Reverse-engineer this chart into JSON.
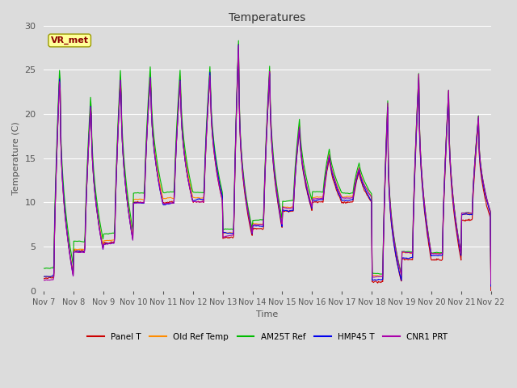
{
  "title": "Temperatures",
  "xlabel": "Time",
  "ylabel": "Temperature (C)",
  "ylim": [
    0,
    30
  ],
  "annotation_text": "VR_met",
  "annotation_color": "#8B0000",
  "annotation_bg": "#FFFF99",
  "annotation_edge": "#999900",
  "bg_color": "#DCDCDC",
  "series_colors": {
    "Panel T": "#CC0000",
    "Old Ref Temp": "#FF8C00",
    "AM25T Ref": "#00BB00",
    "HMP45 T": "#0000EE",
    "CNR1 PRT": "#AA00AA"
  },
  "xtick_labels": [
    "Nov 7",
    "Nov 8",
    "Nov 9",
    "Nov 10",
    "Nov 11",
    "Nov 12",
    "Nov 13",
    "Nov 14",
    "Nov 15",
    "Nov 16",
    "Nov 17",
    "Nov 18",
    "Nov 19",
    "Nov 20",
    "Nov 21",
    "Nov 22"
  ],
  "ytick_values": [
    0,
    5,
    10,
    15,
    20,
    25,
    30
  ],
  "ytick_labels": [
    "0",
    "5",
    "10",
    "15",
    "20",
    "25",
    "30"
  ],
  "grid_color": "#FFFFFF",
  "title_fontsize": 10,
  "label_fontsize": 8,
  "tick_fontsize": 7,
  "lw": 0.8
}
